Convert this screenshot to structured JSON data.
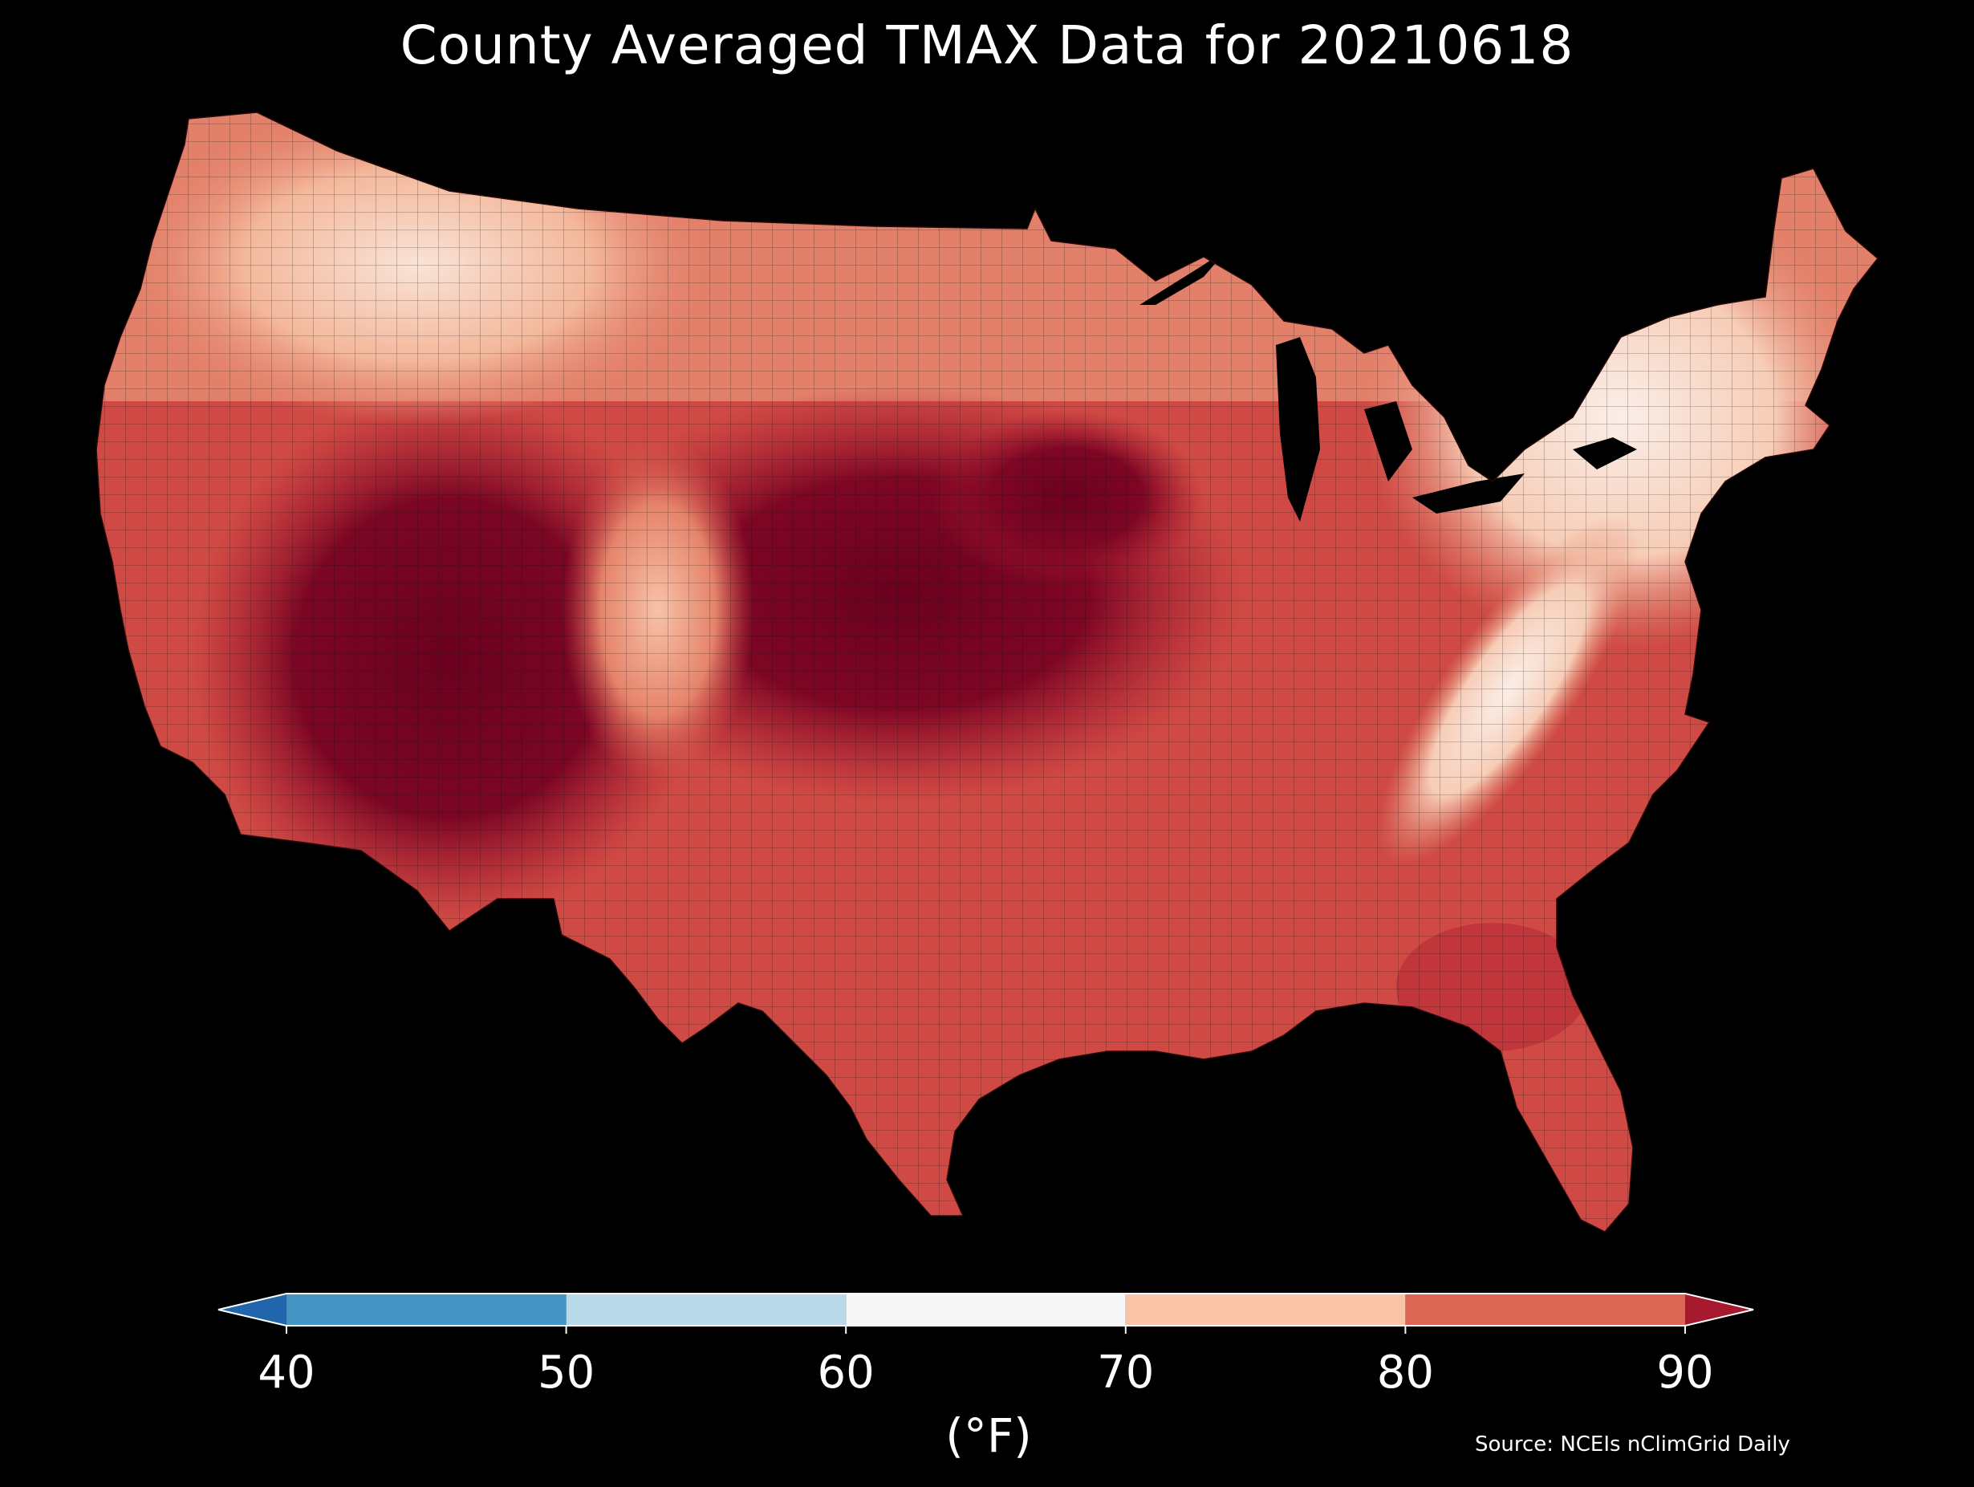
{
  "title": "County Averaged TMAX Data for 20210618",
  "source": "Source: NCEIs nClimGrid Daily",
  "colorbar": {
    "unit": "(°F)",
    "ticks": [
      "40",
      "50",
      "60",
      "70",
      "80",
      "90"
    ],
    "bins": [
      {
        "from": 40,
        "to": 50,
        "color": "#4393c3"
      },
      {
        "from": 50,
        "to": 60,
        "color": "#b8d9ea"
      },
      {
        "from": 60,
        "to": 70,
        "color": "#f7f7f7"
      },
      {
        "from": 70,
        "to": 80,
        "color": "#f9c4a8"
      },
      {
        "from": 80,
        "to": 90,
        "color": "#db6654"
      }
    ],
    "under_color": "#2166ac",
    "over_color": "#a6192e"
  },
  "map": {
    "region": "contiguous-us-counties",
    "variable": "TMAX",
    "land_colors": {
      "coolest": "#f9ece6",
      "cool": "#f7c3a8",
      "mild": "#e68a71",
      "warm": "#cf4a44",
      "hot": "#a6192e",
      "hottest": "#6b0120"
    },
    "background": "#000000",
    "border_color": "#1a0a0a"
  }
}
